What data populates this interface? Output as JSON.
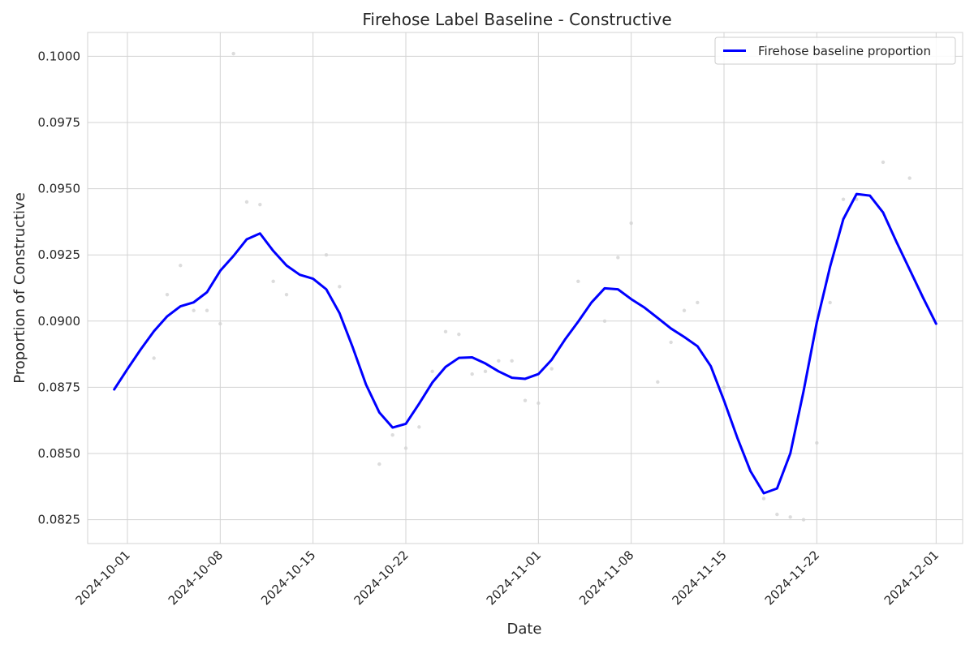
{
  "chart_data": {
    "type": "line",
    "title": "Firehose Label Baseline - Constructive",
    "xlabel": "Date",
    "ylabel": "Proportion of Constructive",
    "x_ticks": [
      "2024-10-01",
      "2024-10-08",
      "2024-10-15",
      "2024-10-22",
      "2024-11-01",
      "2024-11-08",
      "2024-11-15",
      "2024-11-22",
      "2024-12-01"
    ],
    "y_ticks": [
      "0.0825",
      "0.0850",
      "0.0875",
      "0.0900",
      "0.0925",
      "0.0950",
      "0.0975",
      "0.1000"
    ],
    "xlim": [
      "2024-09-28",
      "2024-12-03"
    ],
    "ylim": [
      0.0816,
      0.1009
    ],
    "grid": true,
    "legend_position": "top-right",
    "series": [
      {
        "name": "Firehose baseline proportion",
        "color": "#0000ff",
        "x": [
          "2024-09-30",
          "2024-10-01",
          "2024-10-02",
          "2024-10-03",
          "2024-10-04",
          "2024-10-05",
          "2024-10-06",
          "2024-10-07",
          "2024-10-08",
          "2024-10-09",
          "2024-10-10",
          "2024-10-11",
          "2024-10-12",
          "2024-10-13",
          "2024-10-14",
          "2024-10-15",
          "2024-10-16",
          "2024-10-17",
          "2024-10-18",
          "2024-10-19",
          "2024-10-20",
          "2024-10-21",
          "2024-10-22",
          "2024-10-23",
          "2024-10-24",
          "2024-10-25",
          "2024-10-26",
          "2024-10-27",
          "2024-10-28",
          "2024-10-29",
          "2024-10-30",
          "2024-10-31",
          "2024-11-01",
          "2024-11-02",
          "2024-11-03",
          "2024-11-04",
          "2024-11-05",
          "2024-11-06",
          "2024-11-07",
          "2024-11-08",
          "2024-11-09",
          "2024-11-10",
          "2024-11-11",
          "2024-11-12",
          "2024-11-13",
          "2024-11-14",
          "2024-11-15",
          "2024-11-16",
          "2024-11-17",
          "2024-11-18",
          "2024-11-19",
          "2024-11-20",
          "2024-11-21",
          "2024-11-22",
          "2024-11-23",
          "2024-11-24",
          "2024-11-25",
          "2024-11-26",
          "2024-11-27",
          "2024-11-28",
          "2024-11-29",
          "2024-11-30",
          "2024-12-01"
        ],
        "y": [
          0.08742,
          0.08819,
          0.08893,
          0.08962,
          0.09018,
          0.09056,
          0.09071,
          0.09109,
          0.0919,
          0.09246,
          0.09309,
          0.09331,
          0.09265,
          0.0921,
          0.09175,
          0.0916,
          0.0912,
          0.0903,
          0.089,
          0.0876,
          0.08655,
          0.08598,
          0.08612,
          0.08688,
          0.08768,
          0.08827,
          0.08861,
          0.08863,
          0.0884,
          0.0881,
          0.08786,
          0.08782,
          0.088,
          0.08854,
          0.0893,
          0.08998,
          0.0907,
          0.09124,
          0.0912,
          0.09083,
          0.09051,
          0.09012,
          0.08972,
          0.0894,
          0.08905,
          0.0883,
          0.087,
          0.0856,
          0.08433,
          0.0835,
          0.08368,
          0.085,
          0.08735,
          0.08995,
          0.09205,
          0.09385,
          0.0948,
          0.09474,
          0.0941,
          0.093,
          0.09195,
          0.0909,
          0.0899
        ]
      }
    ],
    "scatter_points": {
      "color": "#d3d3d3",
      "x": [
        "2024-10-03",
        "2024-10-04",
        "2024-10-05",
        "2024-10-06",
        "2024-10-07",
        "2024-10-08",
        "2024-10-09",
        "2024-10-10",
        "2024-10-11",
        "2024-10-12",
        "2024-10-13",
        "2024-10-16",
        "2024-10-17",
        "2024-10-20",
        "2024-10-21",
        "2024-10-22",
        "2024-10-23",
        "2024-10-24",
        "2024-10-25",
        "2024-10-26",
        "2024-10-27",
        "2024-10-28",
        "2024-10-29",
        "2024-10-30",
        "2024-10-31",
        "2024-11-01",
        "2024-11-02",
        "2024-11-04",
        "2024-11-06",
        "2024-11-07",
        "2024-11-08",
        "2024-11-10",
        "2024-11-11",
        "2024-11-12",
        "2024-11-13",
        "2024-11-15",
        "2024-11-18",
        "2024-11-19",
        "2024-11-20",
        "2024-11-21",
        "2024-11-22",
        "2024-11-23",
        "2024-11-24",
        "2024-11-25",
        "2024-11-27",
        "2024-11-29"
      ],
      "y": [
        0.0886,
        0.091,
        0.0921,
        0.0904,
        0.0904,
        0.0899,
        0.1001,
        0.0945,
        0.0944,
        0.0915,
        0.091,
        0.0925,
        0.0913,
        0.0846,
        0.0857,
        0.0852,
        0.086,
        0.0881,
        0.0896,
        0.0895,
        0.088,
        0.0881,
        0.0885,
        0.0885,
        0.087,
        0.0869,
        0.0882,
        0.0915,
        0.09,
        0.0924,
        0.0937,
        0.0877,
        0.0892,
        0.0904,
        0.0907,
        0.0875,
        0.0833,
        0.0827,
        0.0826,
        0.0825,
        0.0854,
        0.0907,
        0.0946,
        0.0946,
        0.096,
        0.0954
      ]
    }
  }
}
